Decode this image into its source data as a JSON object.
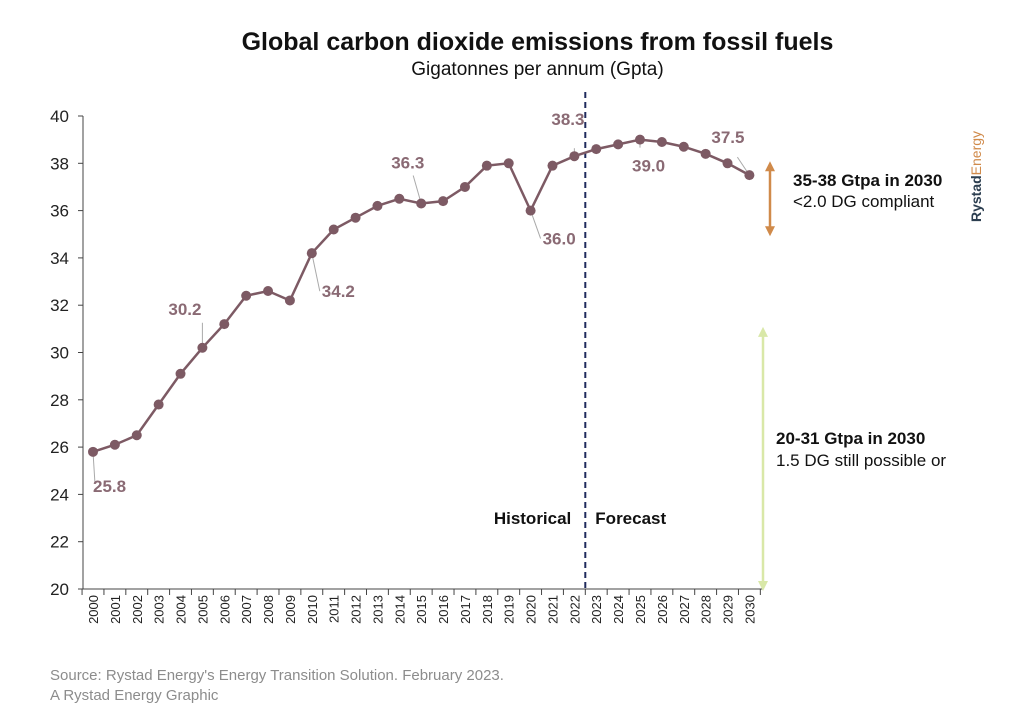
{
  "chart_data": {
    "type": "line",
    "title": "Global carbon dioxide emissions from fossil fuels",
    "subtitle": "Gigatonnes per annum (Gpta)",
    "ylim": [
      20,
      40
    ],
    "yticks": [
      "20",
      "22",
      "24",
      "26",
      "28",
      "30",
      "32",
      "34",
      "36",
      "38",
      "40"
    ],
    "categories": [
      "2000",
      "2001",
      "2002",
      "2003",
      "2004",
      "2005",
      "2006",
      "2007",
      "2008",
      "2009",
      "2010",
      "2011",
      "2012",
      "2013",
      "2014",
      "2015",
      "2016",
      "2017",
      "2018",
      "2019",
      "2020",
      "2021",
      "2022",
      "2023",
      "2024",
      "2025",
      "2026",
      "2027",
      "2028",
      "2029",
      "2030"
    ],
    "series": [
      {
        "name": "CO2 emissions",
        "values": [
          25.8,
          26.1,
          26.5,
          27.8,
          29.1,
          30.2,
          31.2,
          32.4,
          32.6,
          32.2,
          34.2,
          35.2,
          35.7,
          36.2,
          36.5,
          36.3,
          36.4,
          37.0,
          37.9,
          38.0,
          36.0,
          37.9,
          38.3,
          38.6,
          38.8,
          39.0,
          38.9,
          38.7,
          38.4,
          38.0,
          37.5
        ]
      }
    ],
    "data_labels": [
      {
        "category": "2000",
        "text": "25.8"
      },
      {
        "category": "2005",
        "text": "30.2"
      },
      {
        "category": "2010",
        "text": "34.2"
      },
      {
        "category": "2015",
        "text": "36.3"
      },
      {
        "category": "2020",
        "text": "36.0"
      },
      {
        "category": "2022",
        "text": "38.3"
      },
      {
        "category": "2025",
        "text": "39.0"
      },
      {
        "category": "2030",
        "text": "37.5"
      }
    ],
    "divider": {
      "after_category": "2022",
      "left_label": "Historical",
      "right_label": "Forecast"
    },
    "ranges": [
      {
        "from": 35,
        "to": 38,
        "color": "#d08a4a",
        "label": "35-38 Gtpa in 2030",
        "sublabel": "<2.0 DG compliant"
      },
      {
        "from": 20,
        "to": 31,
        "color": "#d9e8a8",
        "label": "20-31 Gtpa in 2030",
        "sublabel": "1.5 DG still possible or"
      }
    ],
    "line_color": "#7d5a64"
  },
  "source": {
    "line1": "Source: Rystad Energy's Energy Transition Solution. February 2023.",
    "line2": "A Rystad Energy Graphic"
  },
  "brand": {
    "part1": "Rystad",
    "part2": "Energy"
  }
}
